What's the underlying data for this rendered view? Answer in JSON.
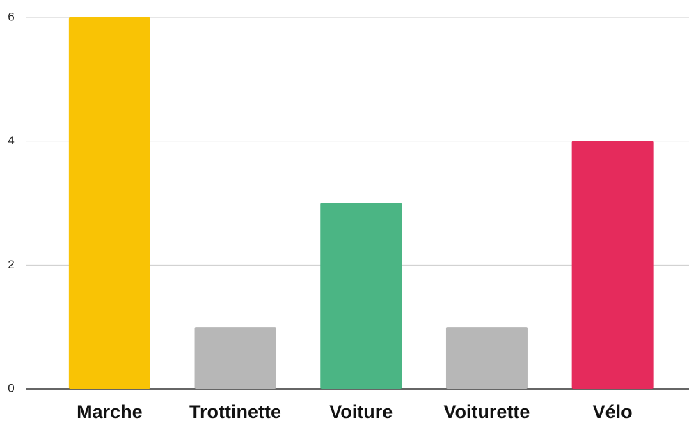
{
  "chart_data": {
    "type": "bar",
    "categories": [
      "Marche",
      "Trottinette",
      "Voiture",
      "Voiturette",
      "Vélo"
    ],
    "values": [
      6,
      1,
      3,
      1,
      4
    ],
    "colors": [
      "#f9c305",
      "#b7b7b7",
      "#4bb584",
      "#b7b7b7",
      "#e52b5c"
    ],
    "ylim": [
      0,
      6
    ],
    "yticks": [
      0,
      2,
      4,
      6
    ],
    "grid": true
  }
}
